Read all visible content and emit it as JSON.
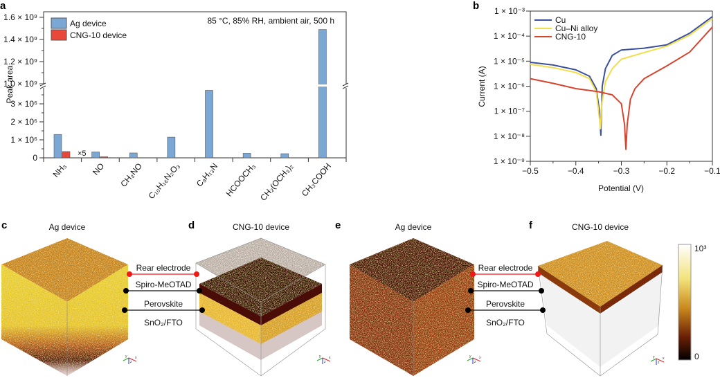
{
  "panel_letters": [
    "a",
    "b",
    "c",
    "d",
    "e",
    "f"
  ],
  "chart_data": [
    {
      "type": "bar",
      "panel": "a",
      "ylabel": "Peak area",
      "annotation": "85 °C, 85% RH, ambient air, 500 h",
      "categories": [
        "NH₃",
        "NO",
        "CH₃NO",
        "C₁₀H₁₆N₂O₃",
        "C₉H₁₃N",
        "HCOOCH₃",
        "CH₂(OCH₃)₂",
        "CH₃COOH"
      ],
      "series": [
        {
          "name": "Ag device",
          "color": "#7aa7d4",
          "values": [
            1300000,
            330000,
            270000,
            1150000,
            3750000,
            250000,
            230000,
            1490000000
          ]
        },
        {
          "name": "CNG-10 device",
          "color": "#e8483a",
          "values": [
            350000,
            60000,
            null,
            null,
            null,
            null,
            null,
            null
          ]
        }
      ],
      "bar_note": "×5",
      "y_axis_break": [
        4000000,
        1000000000
      ],
      "yticks_lower": [
        {
          "v": 0,
          "label": "0"
        },
        {
          "v": 1000000,
          "label": "1 × 10⁶"
        },
        {
          "v": 2000000,
          "label": "2 × 10⁶"
        },
        {
          "v": 3000000,
          "label": "3 × 10⁶"
        }
      ],
      "yticks_upper": [
        {
          "v": 1000000000,
          "label": "1.0 × 10⁹"
        },
        {
          "v": 1200000000,
          "label": "1.2 × 10⁹"
        },
        {
          "v": 1400000000,
          "label": "1.4 × 10⁹"
        },
        {
          "v": 1600000000,
          "label": "1.6 × 10⁹"
        }
      ],
      "legend_placement": "top-left"
    },
    {
      "type": "line",
      "panel": "b",
      "xlabel": "Potential (V)",
      "ylabel": "Current (A)",
      "xlim": [
        -0.5,
        -0.1
      ],
      "ylim": [
        1e-09,
        0.001
      ],
      "yscale": "log",
      "xticks": [
        {
          "v": -0.5,
          "label": "−0.5"
        },
        {
          "v": -0.4,
          "label": "−0.4"
        },
        {
          "v": -0.3,
          "label": "−0.3"
        },
        {
          "v": -0.2,
          "label": "−0.2"
        },
        {
          "v": -0.1,
          "label": "−0.1"
        }
      ],
      "yticks": [
        {
          "v": -3,
          "label": "1 × 10⁻³"
        },
        {
          "v": -4,
          "label": "1 × 10⁻⁴"
        },
        {
          "v": -5,
          "label": "1 × 10⁻⁵"
        },
        {
          "v": -6,
          "label": "1 × 10⁻⁶"
        },
        {
          "v": -7,
          "label": "1 × 10⁻⁷"
        },
        {
          "v": -8,
          "label": "1 × 10⁻⁸"
        },
        {
          "v": -9,
          "label": "1 × 10⁻⁹"
        }
      ],
      "legend_placement": "top-left",
      "series": [
        {
          "name": "Cu",
          "color": "#3a4f9e",
          "x": [
            -0.5,
            -0.45,
            -0.4,
            -0.37,
            -0.355,
            -0.348,
            -0.345,
            -0.342,
            -0.335,
            -0.32,
            -0.3,
            -0.25,
            -0.2,
            -0.15,
            -0.1
          ],
          "y": [
            9e-06,
            7e-06,
            4.5e-06,
            2.5e-06,
            8e-07,
            1e-07,
            1.1e-08,
            1e-06,
            5e-06,
            1.7e-05,
            2.8e-05,
            3.3e-05,
            4.5e-05,
            0.00013,
            0.0006
          ]
        },
        {
          "name": "Cu–Ni alloy",
          "color": "#f2de4a",
          "x": [
            -0.5,
            -0.45,
            -0.4,
            -0.37,
            -0.355,
            -0.348,
            -0.346,
            -0.343,
            -0.335,
            -0.32,
            -0.3,
            -0.25,
            -0.2,
            -0.15,
            -0.1
          ],
          "y": [
            7.5e-06,
            5.5e-06,
            3.5e-06,
            2e-06,
            6e-07,
            5e-08,
            2e-08,
            2e-07,
            1.5e-06,
            5e-06,
            1.2e-05,
            2.2e-05,
            4e-05,
            0.00011,
            0.0005
          ]
        },
        {
          "name": "CNG-10",
          "color": "#d8432e",
          "x": [
            -0.5,
            -0.45,
            -0.4,
            -0.35,
            -0.32,
            -0.3,
            -0.293,
            -0.29,
            -0.287,
            -0.28,
            -0.27,
            -0.25,
            -0.2,
            -0.15,
            -0.1
          ],
          "y": [
            2e-06,
            1.3e-06,
            8e-07,
            6e-07,
            4.5e-07,
            2e-07,
            3e-08,
            3e-09,
            3e-08,
            3e-07,
            8e-07,
            2e-06,
            6.5e-06,
            2.3e-05,
            0.00023
          ]
        }
      ]
    }
  ],
  "tomography": {
    "titles": {
      "c": "Ag device",
      "d": "CNG-10 device",
      "e": "Ag device",
      "f": "CNG-10 device"
    },
    "layers": [
      "Rear electrode",
      "Spiro-MeOTAD",
      "Perovskite",
      "SnO₂/FTO"
    ],
    "colorbar": {
      "max_label": "10³",
      "min_label": "0",
      "colors": [
        "#ffffff",
        "#f2e27a",
        "#c98a1e",
        "#7a2a08",
        "#000000"
      ]
    },
    "axis_labels": [
      "y",
      "z",
      "x"
    ]
  }
}
